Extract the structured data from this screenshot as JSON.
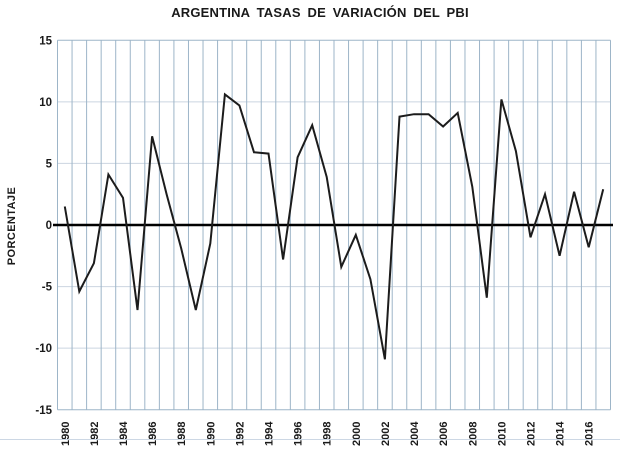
{
  "chart": {
    "title": "ARGENTINA TASAS DE VARIACIÓN DEL PBI",
    "ylabel": "PORCENTAJE"
  },
  "chart_data": {
    "type": "line",
    "title": "ARGENTINA TASAS DE VARIACIÓN DEL PBI",
    "xlabel": "",
    "ylabel": "PORCENTAJE",
    "x": [
      1980,
      1981,
      1982,
      1983,
      1984,
      1985,
      1986,
      1987,
      1988,
      1989,
      1990,
      1991,
      1992,
      1993,
      1994,
      1995,
      1996,
      1997,
      1998,
      1999,
      2000,
      2001,
      2002,
      2003,
      2004,
      2005,
      2006,
      2007,
      2008,
      2009,
      2010,
      2011,
      2012,
      2013,
      2014,
      2015,
      2016,
      2017
    ],
    "values": [
      1.5,
      -5.4,
      -3.1,
      4.1,
      2.2,
      -6.9,
      7.2,
      2.5,
      -1.9,
      -6.9,
      -1.5,
      10.6,
      9.7,
      5.9,
      5.8,
      -2.8,
      5.5,
      8.1,
      3.9,
      -3.4,
      -0.8,
      -4.4,
      -10.9,
      8.8,
      9.0,
      9.0,
      8.0,
      9.1,
      3.1,
      -5.9,
      10.2,
      6.0,
      -1.0,
      2.5,
      -2.5,
      2.7,
      -1.8,
      2.9
    ],
    "ylim": [
      -15,
      15
    ],
    "yticks": [
      15,
      10,
      5,
      0,
      -5,
      -10,
      -15
    ],
    "xtick_labels": [
      "1980",
      "1982",
      "1984",
      "1986",
      "1988",
      "1990",
      "1992",
      "1994",
      "1996",
      "1998",
      "2000",
      "2002",
      "2004",
      "2006",
      "2008",
      "2010",
      "2012",
      "2014",
      "2016"
    ],
    "xtick_label_every": 2,
    "grid": true,
    "legend": "none",
    "colors": {
      "line": "#1c1c1c",
      "zero_line": "#000000",
      "v_grid": "#9db5c8",
      "h_grid": "#cbd5e1",
      "border": "#9db5c8",
      "text": "#1a1a1a"
    }
  }
}
